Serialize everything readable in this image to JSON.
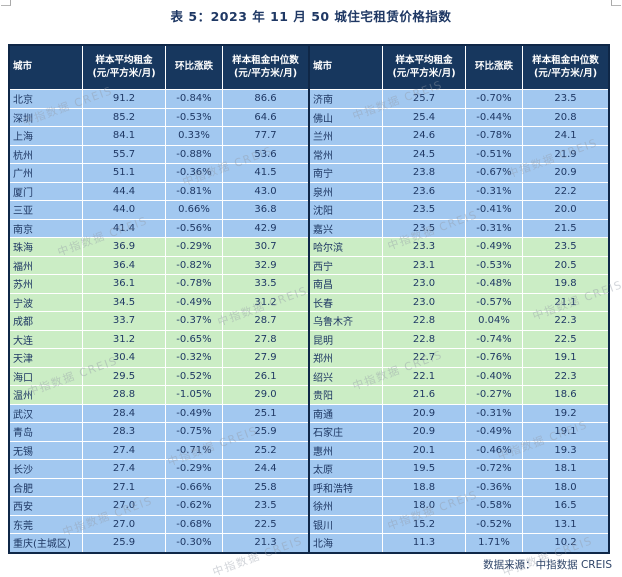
{
  "title": "表 5：2023 年 11 月 50 城住宅租赁价格指数",
  "header": {
    "city": "城市",
    "avg_line1": "样本平均租金",
    "avg_line2": "(元/平方米/月)",
    "mom": "环比涨跌",
    "median_line1": "样本租金中位数",
    "median_line2": "(元/平方米/月)"
  },
  "footer": {
    "source": "数据来源：中指数据 CREIS"
  },
  "watermark": {
    "text": "中指数据 CREIS"
  },
  "colors": {
    "header_bg": "#17375E",
    "band_blue": "#A2C8F0",
    "band_green": "#CBEDC5",
    "text": "#1F3864",
    "border": "#0F2747"
  },
  "table": {
    "left_rows": [
      {
        "city": "北京",
        "avg": "91.2",
        "mom": "-0.84%",
        "median": "86.6",
        "band": "blue"
      },
      {
        "city": "深圳",
        "avg": "85.2",
        "mom": "-0.53%",
        "median": "64.6",
        "band": "blue"
      },
      {
        "city": "上海",
        "avg": "84.1",
        "mom": "0.33%",
        "median": "77.7",
        "band": "blue"
      },
      {
        "city": "杭州",
        "avg": "55.7",
        "mom": "-0.88%",
        "median": "53.6",
        "band": "blue"
      },
      {
        "city": "广州",
        "avg": "51.1",
        "mom": "-0.36%",
        "median": "41.5",
        "band": "blue"
      },
      {
        "city": "厦门",
        "avg": "44.4",
        "mom": "-0.81%",
        "median": "43.0",
        "band": "blue"
      },
      {
        "city": "三亚",
        "avg": "44.0",
        "mom": "0.66%",
        "median": "36.8",
        "band": "blue"
      },
      {
        "city": "南京",
        "avg": "41.4",
        "mom": "-0.56%",
        "median": "42.9",
        "band": "blue"
      },
      {
        "city": "珠海",
        "avg": "36.9",
        "mom": "-0.29%",
        "median": "30.7",
        "band": "green"
      },
      {
        "city": "福州",
        "avg": "36.4",
        "mom": "-0.82%",
        "median": "32.9",
        "band": "green"
      },
      {
        "city": "苏州",
        "avg": "36.1",
        "mom": "-0.78%",
        "median": "33.5",
        "band": "green"
      },
      {
        "city": "宁波",
        "avg": "34.5",
        "mom": "-0.49%",
        "median": "31.2",
        "band": "green"
      },
      {
        "city": "成都",
        "avg": "33.7",
        "mom": "-0.37%",
        "median": "28.7",
        "band": "green"
      },
      {
        "city": "大连",
        "avg": "31.2",
        "mom": "-0.65%",
        "median": "27.8",
        "band": "green"
      },
      {
        "city": "天津",
        "avg": "30.4",
        "mom": "-0.32%",
        "median": "27.9",
        "band": "green"
      },
      {
        "city": "海口",
        "avg": "29.5",
        "mom": "-0.52%",
        "median": "26.1",
        "band": "green"
      },
      {
        "city": "温州",
        "avg": "28.8",
        "mom": "-1.05%",
        "median": "29.0",
        "band": "green"
      },
      {
        "city": "武汉",
        "avg": "28.4",
        "mom": "-0.49%",
        "median": "25.1",
        "band": "blue"
      },
      {
        "city": "青岛",
        "avg": "28.3",
        "mom": "-0.75%",
        "median": "25.9",
        "band": "blue"
      },
      {
        "city": "无锡",
        "avg": "27.4",
        "mom": "-0.71%",
        "median": "25.2",
        "band": "blue"
      },
      {
        "city": "长沙",
        "avg": "27.4",
        "mom": "-0.29%",
        "median": "24.4",
        "band": "blue"
      },
      {
        "city": "合肥",
        "avg": "27.1",
        "mom": "-0.66%",
        "median": "25.8",
        "band": "blue"
      },
      {
        "city": "西安",
        "avg": "27.0",
        "mom": "-0.62%",
        "median": "23.5",
        "band": "blue"
      },
      {
        "city": "东莞",
        "avg": "27.0",
        "mom": "-0.68%",
        "median": "22.5",
        "band": "blue"
      },
      {
        "city": "重庆(主城区)",
        "avg": "25.9",
        "mom": "-0.30%",
        "median": "21.3",
        "band": "blue"
      }
    ],
    "right_rows": [
      {
        "city": "济南",
        "avg": "25.7",
        "mom": "-0.70%",
        "median": "23.5",
        "band": "blue"
      },
      {
        "city": "佛山",
        "avg": "25.4",
        "mom": "-0.44%",
        "median": "20.8",
        "band": "blue"
      },
      {
        "city": "兰州",
        "avg": "24.6",
        "mom": "-0.78%",
        "median": "24.1",
        "band": "blue"
      },
      {
        "city": "常州",
        "avg": "24.5",
        "mom": "-0.51%",
        "median": "21.9",
        "band": "blue"
      },
      {
        "city": "南宁",
        "avg": "23.8",
        "mom": "-0.67%",
        "median": "20.9",
        "band": "blue"
      },
      {
        "city": "泉州",
        "avg": "23.6",
        "mom": "-0.31%",
        "median": "22.2",
        "band": "blue"
      },
      {
        "city": "沈阳",
        "avg": "23.5",
        "mom": "-0.41%",
        "median": "20.0",
        "band": "blue"
      },
      {
        "city": "嘉兴",
        "avg": "23.5",
        "mom": "-0.31%",
        "median": "21.5",
        "band": "blue"
      },
      {
        "city": "哈尔滨",
        "avg": "23.3",
        "mom": "-0.49%",
        "median": "23.5",
        "band": "green"
      },
      {
        "city": "西宁",
        "avg": "23.1",
        "mom": "-0.53%",
        "median": "20.5",
        "band": "green"
      },
      {
        "city": "南昌",
        "avg": "23.0",
        "mom": "-0.48%",
        "median": "19.8",
        "band": "green"
      },
      {
        "city": "长春",
        "avg": "23.0",
        "mom": "-0.57%",
        "median": "21.1",
        "band": "green"
      },
      {
        "city": "乌鲁木齐",
        "avg": "22.8",
        "mom": "0.04%",
        "median": "22.3",
        "band": "green"
      },
      {
        "city": "昆明",
        "avg": "22.8",
        "mom": "-0.74%",
        "median": "22.5",
        "band": "green"
      },
      {
        "city": "郑州",
        "avg": "22.7",
        "mom": "-0.76%",
        "median": "19.1",
        "band": "green"
      },
      {
        "city": "绍兴",
        "avg": "22.1",
        "mom": "-0.40%",
        "median": "22.3",
        "band": "green"
      },
      {
        "city": "贵阳",
        "avg": "21.6",
        "mom": "-0.27%",
        "median": "18.6",
        "band": "green"
      },
      {
        "city": "南通",
        "avg": "20.9",
        "mom": "-0.31%",
        "median": "19.2",
        "band": "blue"
      },
      {
        "city": "石家庄",
        "avg": "20.9",
        "mom": "-0.49%",
        "median": "19.1",
        "band": "blue"
      },
      {
        "city": "惠州",
        "avg": "20.1",
        "mom": "-0.46%",
        "median": "19.3",
        "band": "blue"
      },
      {
        "city": "太原",
        "avg": "19.5",
        "mom": "-0.72%",
        "median": "18.1",
        "band": "blue"
      },
      {
        "city": "呼和浩特",
        "avg": "18.8",
        "mom": "-0.36%",
        "median": "18.0",
        "band": "blue"
      },
      {
        "city": "徐州",
        "avg": "18.0",
        "mom": "-0.58%",
        "median": "16.5",
        "band": "blue"
      },
      {
        "city": "银川",
        "avg": "15.2",
        "mom": "-0.52%",
        "median": "13.1",
        "band": "blue"
      },
      {
        "city": "北海",
        "avg": "11.3",
        "mom": "1.71%",
        "median": "10.2",
        "band": "blue"
      }
    ]
  }
}
